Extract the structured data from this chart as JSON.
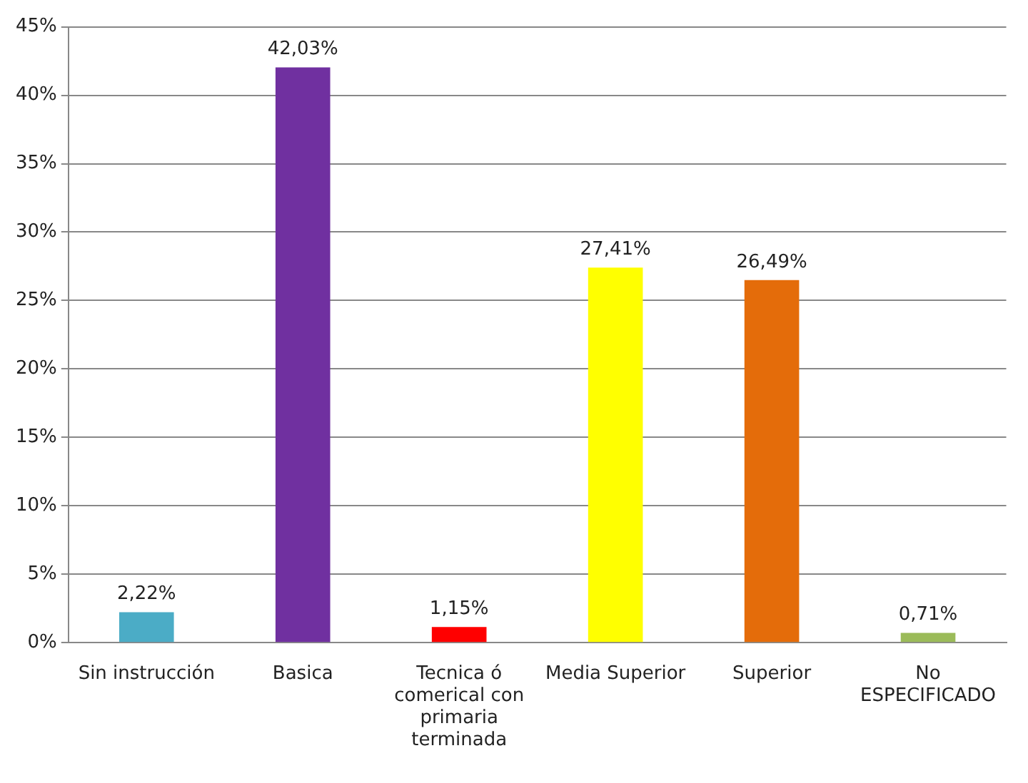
{
  "chart_data": {
    "type": "bar",
    "categories": [
      "Sin instrucción",
      "Basica",
      "Tecnica ó comerical con primaria terminada",
      "Media Superior",
      "Superior",
      "No ESPECIFICADO"
    ],
    "values": [
      2.22,
      42.03,
      1.15,
      27.41,
      26.49,
      0.71
    ],
    "value_labels": [
      "2,22%",
      "42,03%",
      "1,15%",
      "27,41%",
      "26,49%",
      "0,71%"
    ],
    "colors": [
      "#4bacc6",
      "#7030a0",
      "#ff0000",
      "#ffff00",
      "#e46c0a",
      "#9bbb59"
    ],
    "ylim": [
      0,
      45
    ],
    "yticks": [
      {
        "value": 0,
        "label": "0%"
      },
      {
        "value": 5,
        "label": "5%"
      },
      {
        "value": 10,
        "label": "10%"
      },
      {
        "value": 15,
        "label": "15%"
      },
      {
        "value": 20,
        "label": "20%"
      },
      {
        "value": 25,
        "label": "25%"
      },
      {
        "value": 30,
        "label": "30%"
      },
      {
        "value": 35,
        "label": "35%"
      },
      {
        "value": 40,
        "label": "40%"
      },
      {
        "value": 45,
        "label": "45%"
      }
    ],
    "grid": "y",
    "legend": false
  }
}
